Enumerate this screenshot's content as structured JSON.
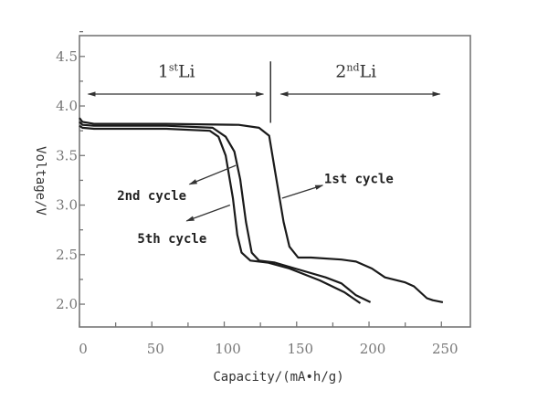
{
  "chart_data": {
    "type": "line",
    "title": "",
    "xlabel": "Capacity/(mA•h/g)",
    "ylabel": "Voltage/V",
    "xlim": [
      0,
      270
    ],
    "ylim": [
      1.77,
      4.71
    ],
    "xticks": [
      "0",
      "50",
      "100",
      "150",
      "200",
      "250"
    ],
    "xtick_values": [
      0,
      50,
      100,
      150,
      200,
      250
    ],
    "yticks": [
      "2.0",
      "2.5",
      "3.0",
      "3.5",
      "4.0",
      "4.5"
    ],
    "ytick_values": [
      2.0,
      2.5,
      3.0,
      3.5,
      4.0,
      4.5
    ],
    "grid": false,
    "line_color": "#1a1a1a",
    "series": [
      {
        "name": "1st cycle",
        "x": [
          0,
          2,
          10,
          60,
          110,
          124,
          131,
          135,
          141,
          145,
          151,
          160,
          181,
          191,
          202,
          211,
          225,
          231,
          240,
          244,
          251
        ],
        "y": [
          3.88,
          3.84,
          3.82,
          3.82,
          3.81,
          3.78,
          3.7,
          3.35,
          2.83,
          2.58,
          2.47,
          2.47,
          2.45,
          2.43,
          2.36,
          2.27,
          2.22,
          2.18,
          2.06,
          2.04,
          2.02
        ]
      },
      {
        "name": "2nd cycle",
        "x": [
          0,
          2,
          10,
          60,
          92,
          101,
          107,
          111,
          115,
          119,
          124,
          135,
          149,
          170,
          181,
          191,
          201
        ],
        "y": [
          3.84,
          3.81,
          3.8,
          3.8,
          3.78,
          3.69,
          3.54,
          3.26,
          2.83,
          2.52,
          2.44,
          2.42,
          2.36,
          2.27,
          2.21,
          2.09,
          2.02
        ]
      },
      {
        "name": "5th cycle",
        "x": [
          0,
          2,
          10,
          60,
          90,
          96,
          101,
          106,
          109,
          112,
          118,
          130,
          145,
          166,
          183,
          194
        ],
        "y": [
          3.8,
          3.78,
          3.77,
          3.77,
          3.75,
          3.69,
          3.5,
          3.07,
          2.7,
          2.52,
          2.44,
          2.42,
          2.36,
          2.24,
          2.12,
          2.01
        ]
      }
    ],
    "annotations": {
      "region_1": {
        "sup_base": "1",
        "sup": "st",
        "rest": "Li",
        "arrow_from": 6,
        "arrow_to": 127
      },
      "region_2": {
        "sup_base": "2",
        "sup": "nd",
        "rest": "Li",
        "arrow_from": 139,
        "arrow_to": 249
      },
      "divider_x": 132,
      "labels": [
        {
          "text": "1st cycle",
          "x": 169,
          "y": 3.22,
          "arrow": [
            [
              140,
              3.07
            ],
            [
              168,
              3.2
            ]
          ]
        },
        {
          "text": "2nd cycle",
          "x": 26,
          "y": 3.05,
          "arrow": [
            [
              108,
              3.4
            ],
            [
              76,
              3.21
            ]
          ]
        },
        {
          "text": "5th cycle",
          "x": 40,
          "y": 2.62,
          "arrow": [
            [
              104,
              3.0
            ],
            [
              74,
              2.84
            ]
          ]
        }
      ]
    }
  }
}
